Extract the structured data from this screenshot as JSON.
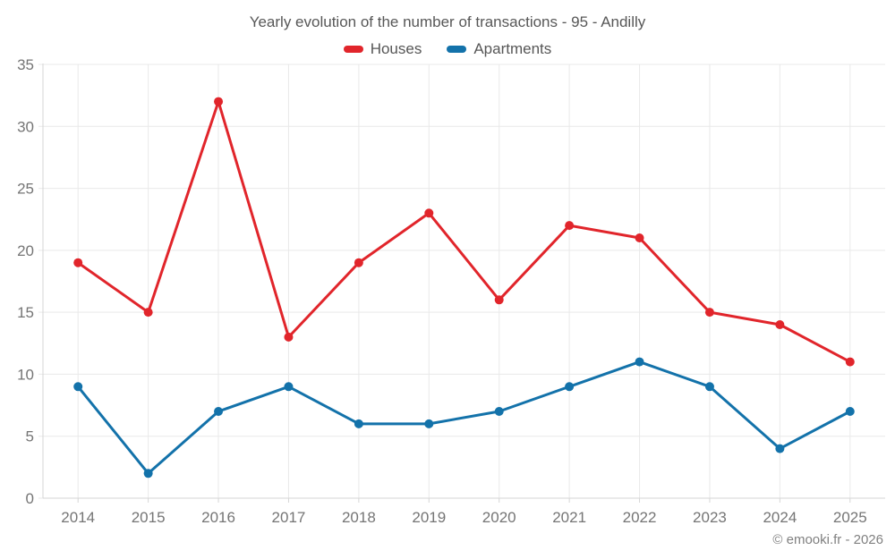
{
  "chart": {
    "title": "Yearly evolution of the number of transactions - 95 - Andilly",
    "footer": "© emooki.fr - 2026"
  },
  "chart_data": {
    "type": "line",
    "title": "Yearly evolution of the number of transactions - 95 - Andilly",
    "categories": [
      "2014",
      "2015",
      "2016",
      "2017",
      "2018",
      "2019",
      "2020",
      "2021",
      "2022",
      "2023",
      "2024",
      "2025"
    ],
    "series": [
      {
        "name": "Houses",
        "color": "#e1252b",
        "values": [
          19,
          15,
          32,
          13,
          19,
          23,
          16,
          22,
          21,
          15,
          14,
          11
        ]
      },
      {
        "name": "Apartments",
        "color": "#1372aa",
        "values": [
          9,
          2,
          7,
          9,
          6,
          6,
          7,
          9,
          11,
          9,
          4,
          7
        ]
      }
    ],
    "ylim": [
      0,
      35
    ],
    "ytick_step": 5,
    "grid": true,
    "legend_position": "top",
    "xlabel": "",
    "ylabel": "",
    "colors": {
      "gridline": "#e9e9e9",
      "axis": "#d6d6d6",
      "tick_label": "#757575",
      "title_text": "#575757",
      "footer_text": "#808080"
    }
  }
}
